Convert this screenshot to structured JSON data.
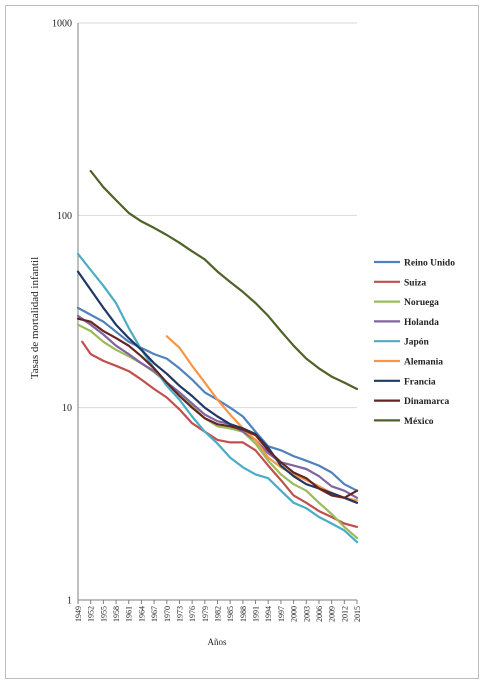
{
  "chart_data": {
    "type": "line",
    "title": "",
    "xlabel": "Años",
    "ylabel": "Tasas de mortalidad infantil",
    "yscale": "log",
    "ylim": [
      1,
      1000
    ],
    "yticks": [
      "1",
      "10",
      "100",
      "1000"
    ],
    "xlim": [
      1949,
      2015
    ],
    "xticks": [
      "1949",
      "1952",
      "1955",
      "1958",
      "1961",
      "1964",
      "1967",
      "1970",
      "1973",
      "1976",
      "1979",
      "1982",
      "1985",
      "1988",
      "1991",
      "1994",
      "1997",
      "2000",
      "2003",
      "2006",
      "2009",
      "2012",
      "2015"
    ],
    "grid": "horizontal",
    "legend_position": "right",
    "series": [
      {
        "name": "Reino Unido",
        "color": "#4f81bd",
        "x": [
          1949,
          1955,
          1961,
          1967,
          1970,
          1973,
          1976,
          1979,
          1982,
          1985,
          1988,
          1991,
          1994,
          1997,
          2000,
          2003,
          2006,
          2009,
          2012,
          2015
        ],
        "y": [
          33,
          28,
          22,
          19,
          18,
          16,
          14,
          12,
          11,
          10,
          9,
          7.5,
          6.3,
          6,
          5.6,
          5.3,
          5,
          4.6,
          4,
          3.7
        ]
      },
      {
        "name": "Suiza",
        "color": "#c0504d",
        "x": [
          1950,
          1952,
          1955,
          1958,
          1961,
          1964,
          1967,
          1970,
          1973,
          1976,
          1979,
          1982,
          1985,
          1988,
          1991,
          1994,
          1997,
          2000,
          2003,
          2006,
          2009,
          2012,
          2015
        ],
        "y": [
          22,
          19,
          17.5,
          16.5,
          15.5,
          14,
          12.5,
          11.3,
          9.8,
          8.3,
          7.5,
          6.8,
          6.6,
          6.6,
          6,
          5,
          4.2,
          3.5,
          3.2,
          2.9,
          2.7,
          2.5,
          2.4
        ]
      },
      {
        "name": "Noruega",
        "color": "#9bbb59",
        "x": [
          1949,
          1952,
          1955,
          1958,
          1961,
          1964,
          1967,
          1970,
          1973,
          1976,
          1979,
          1982,
          1985,
          1988,
          1991,
          1994,
          1997,
          2000,
          2003,
          2006,
          2009,
          2012,
          2015
        ],
        "y": [
          27,
          25,
          22,
          20,
          18.5,
          17,
          15.3,
          13.5,
          11.8,
          10.2,
          8.8,
          8,
          7.8,
          7.5,
          6.5,
          5.3,
          4.5,
          4,
          3.7,
          3.2,
          2.8,
          2.4,
          2.1
        ]
      },
      {
        "name": "Holanda",
        "color": "#8064a2",
        "x": [
          1949,
          1952,
          1955,
          1958,
          1961,
          1964,
          1967,
          1970,
          1973,
          1976,
          1979,
          1982,
          1985,
          1988,
          1991,
          1994,
          1997,
          2000,
          2003,
          2006,
          2009,
          2012,
          2015
        ],
        "y": [
          30,
          27,
          24,
          21,
          19,
          17,
          15.5,
          13.5,
          12,
          10.5,
          9.2,
          8.5,
          8.2,
          7.5,
          6.8,
          5.8,
          5.2,
          5,
          4.8,
          4.4,
          3.9,
          3.7,
          3.4
        ]
      },
      {
        "name": "Japón",
        "color": "#4bacc6",
        "x": [
          1949,
          1952,
          1955,
          1958,
          1961,
          1964,
          1967,
          1970,
          1973,
          1976,
          1979,
          1982,
          1985,
          1988,
          1991,
          1994,
          1997,
          2000,
          2003,
          2006,
          2009,
          2012,
          2015
        ],
        "y": [
          63,
          52,
          43,
          35,
          26,
          20,
          16,
          13,
          11,
          9,
          7.5,
          6.5,
          5.5,
          4.9,
          4.5,
          4.3,
          3.7,
          3.2,
          3,
          2.7,
          2.5,
          2.3,
          2
        ]
      },
      {
        "name": "Alemania",
        "color": "#f79646",
        "x": [
          1970,
          1973,
          1976,
          1979,
          1982,
          1985,
          1988,
          1991,
          1994,
          1997,
          2000,
          2003,
          2006,
          2009,
          2012,
          2015
        ],
        "y": [
          23.5,
          20.5,
          16.5,
          13.5,
          11,
          9.2,
          7.8,
          6.8,
          5.5,
          4.9,
          4.5,
          4.2,
          3.9,
          3.6,
          3.4,
          3.3
        ]
      },
      {
        "name": "Francia",
        "color": "#1f3864",
        "x": [
          1949,
          1952,
          1955,
          1958,
          1961,
          1964,
          1967,
          1970,
          1973,
          1976,
          1979,
          1982,
          1985,
          1988,
          1991,
          1994,
          1997,
          2000,
          2003,
          2006,
          2009,
          2012,
          2015
        ],
        "y": [
          51,
          41,
          33,
          27,
          23,
          20,
          17,
          15,
          13,
          11.5,
          10,
          9,
          8.2,
          7.8,
          7.3,
          6.2,
          5,
          4.4,
          4,
          3.8,
          3.6,
          3.4,
          3.2
        ]
      },
      {
        "name": "Dinamarca",
        "color": "#632523",
        "x": [
          1949,
          1952,
          1955,
          1958,
          1961,
          1964,
          1967,
          1970,
          1973,
          1976,
          1979,
          1982,
          1985,
          1988,
          1991,
          1994,
          1997,
          2000,
          2003,
          2006,
          2009,
          2012,
          2015
        ],
        "y": [
          29,
          28,
          25,
          23,
          21,
          18.5,
          16,
          13.5,
          11.5,
          10,
          8.8,
          8.2,
          8,
          7.7,
          7.2,
          6,
          5.2,
          4.6,
          4.3,
          3.8,
          3.5,
          3.4,
          3.7
        ]
      },
      {
        "name": "México",
        "color": "#4f6228",
        "x": [
          1952,
          1955,
          1958,
          1961,
          1964,
          1967,
          1970,
          1973,
          1976,
          1979,
          1982,
          1985,
          1988,
          1991,
          1994,
          1997,
          2000,
          2003,
          2006,
          2009,
          2012,
          2015
        ],
        "y": [
          170,
          140,
          120,
          103,
          93,
          86,
          79,
          72,
          65,
          59,
          51,
          45,
          40,
          35,
          30,
          25,
          21,
          18,
          16,
          14.5,
          13.5,
          12.5
        ]
      }
    ]
  }
}
